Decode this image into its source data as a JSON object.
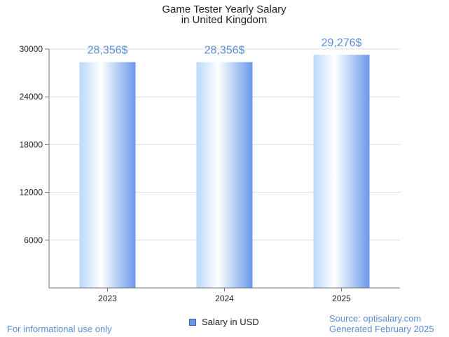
{
  "chart_data": {
    "type": "bar",
    "title": [
      "Game Tester Yearly Salary",
      "in United Kingdom"
    ],
    "categories": [
      "2023",
      "2024",
      "2025"
    ],
    "series": [
      {
        "name": "Salary in USD",
        "values": [
          28356,
          28356,
          29276
        ]
      }
    ],
    "data_labels": [
      "28,356$",
      "28,356$",
      "29,276$"
    ],
    "y_ticks": [
      6000,
      12000,
      18000,
      24000,
      30000
    ],
    "y_tick_labels": [
      "6000",
      "12000",
      "18000",
      "24000",
      "30000"
    ],
    "ylim": [
      0,
      30000
    ],
    "xlabel": "",
    "ylabel": "",
    "grid": true,
    "legend_position": "bottom-center"
  },
  "footer": {
    "disclaimer": "For informational use only",
    "source": "Source: optisalary.com",
    "generated": "Generated February 2025"
  },
  "colors": {
    "accent_text": "#5b8ed6",
    "bar_light": "#ffffff",
    "bar_blue": "#b8d8fb",
    "bar_dark": "#6a98e8",
    "grid": "#dddddd",
    "axis": "#777777",
    "legend_swatch": "#6a98e8"
  }
}
